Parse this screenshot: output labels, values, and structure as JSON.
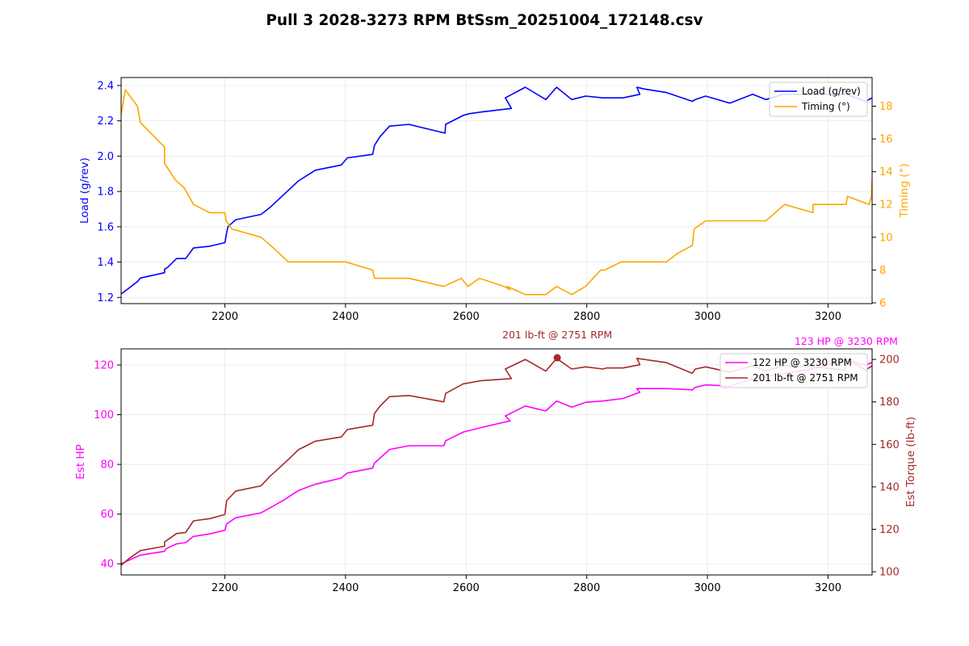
{
  "figure_title": "Pull 3 2028-3273 RPM BtSsm_20251004_172148.csv",
  "colors": {
    "load": "#0000ff",
    "timing": "#ffa500",
    "hp": "#ff00ff",
    "torque": "#a52a2a",
    "grid": "#e6e6e6"
  },
  "chart_data": [
    {
      "type": "line",
      "title": "",
      "xlabel": "",
      "xlim": [
        2028,
        3273
      ],
      "xticks": [
        2200,
        2400,
        2600,
        2800,
        3000,
        3200
      ],
      "grid": true,
      "legend": "top-right",
      "left_axis": {
        "label": "Load (g/rev)",
        "ylim": [
          1.165,
          2.445
        ],
        "ticks": [
          "1.2",
          "1.4",
          "1.6",
          "1.8",
          "2.0",
          "2.2",
          "2.4"
        ],
        "tick_values": [
          1.2,
          1.4,
          1.6,
          1.8,
          2.0,
          2.2,
          2.4
        ]
      },
      "right_axis": {
        "label": "Timing (°)",
        "ylim": [
          5.95,
          19.75
        ],
        "ticks": [
          "6",
          "8",
          "10",
          "12",
          "14",
          "16",
          "18"
        ],
        "tick_values": [
          6,
          8,
          10,
          12,
          14,
          16,
          18
        ]
      },
      "series": [
        {
          "name": "Load (g/rev)",
          "axis": "left",
          "x": [
            2028,
            2040,
            2055,
            2060,
            2100,
            2100,
            2105,
            2120,
            2135,
            2148,
            2175,
            2200,
            2202,
            2205,
            2218,
            2260,
            2275,
            2300,
            2322,
            2350,
            2393,
            2403,
            2445,
            2448,
            2457,
            2473,
            2505,
            2565,
            2566,
            2595,
            2605,
            2625,
            2675,
            2665,
            2698,
            2732,
            2750,
            2775,
            2798,
            2827,
            2860,
            2888,
            2883,
            2895,
            2932,
            2975,
            2980,
            2997,
            3037,
            3075,
            3097,
            3125,
            3175,
            3230,
            3262,
            3273
          ],
          "y": [
            1.22,
            1.25,
            1.29,
            1.31,
            1.34,
            1.36,
            1.37,
            1.42,
            1.42,
            1.48,
            1.49,
            1.51,
            1.55,
            1.6,
            1.64,
            1.67,
            1.71,
            1.79,
            1.86,
            1.92,
            1.95,
            1.99,
            2.01,
            2.06,
            2.11,
            2.17,
            2.18,
            2.13,
            2.18,
            2.23,
            2.24,
            2.25,
            2.27,
            2.33,
            2.39,
            2.32,
            2.39,
            2.32,
            2.34,
            2.33,
            2.33,
            2.35,
            2.39,
            2.38,
            2.36,
            2.31,
            2.32,
            2.34,
            2.3,
            2.35,
            2.32,
            2.35,
            2.35,
            2.35,
            2.31,
            2.33
          ]
        },
        {
          "name": "Timing (°)",
          "axis": "right",
          "x": [
            2028,
            2035,
            2055,
            2060,
            2100,
            2100,
            2118,
            2133,
            2148,
            2175,
            2200,
            2202,
            2212,
            2260,
            2285,
            2305,
            2400,
            2445,
            2448,
            2505,
            2563,
            2592,
            2603,
            2622,
            2663,
            2673,
            2668,
            2698,
            2732,
            2750,
            2775,
            2798,
            2823,
            2830,
            2857,
            2885,
            2895,
            2932,
            2950,
            2975,
            2978,
            2997,
            3097,
            3128,
            3175,
            3175,
            3230,
            3232,
            3268,
            3272,
            3273
          ],
          "y": [
            17.5,
            19.0,
            18.0,
            17.0,
            15.5,
            14.5,
            13.5,
            13.0,
            12.0,
            11.5,
            11.5,
            11.0,
            10.5,
            10.0,
            9.2,
            8.5,
            8.5,
            8.0,
            7.5,
            7.5,
            7.0,
            7.5,
            7.0,
            7.5,
            7.0,
            6.8,
            7.0,
            6.5,
            6.5,
            7.0,
            6.5,
            7.0,
            8.0,
            8.0,
            8.5,
            8.5,
            8.5,
            8.5,
            9.0,
            9.5,
            10.5,
            11.0,
            11.0,
            12.0,
            11.5,
            12.0,
            12.0,
            12.5,
            12.0,
            12.5,
            13.5
          ]
        }
      ]
    },
    {
      "type": "line",
      "title": "",
      "xlabel": "",
      "xlim": [
        2028,
        3273
      ],
      "xticks": [
        2200,
        2400,
        2600,
        2800,
        3000,
        3200
      ],
      "grid": true,
      "legend": "top-right",
      "left_axis": {
        "label": "Est HP",
        "ylim": [
          35.5,
          126.5
        ],
        "ticks": [
          "40",
          "60",
          "80",
          "100",
          "120"
        ],
        "tick_values": [
          40,
          60,
          80,
          100,
          120
        ]
      },
      "right_axis": {
        "label": "Est Torque (lb-ft)",
        "ylim": [
          98.5,
          205.0
        ],
        "ticks": [
          "100",
          "120",
          "140",
          "160",
          "180",
          "200"
        ],
        "tick_values": [
          100,
          120,
          140,
          160,
          180,
          200
        ]
      },
      "series": [
        {
          "name": "122 HP @ 3230 RPM",
          "axis": "left",
          "x": [
            2028,
            2060,
            2100,
            2102,
            2120,
            2135,
            2148,
            2175,
            2200,
            2203,
            2218,
            2260,
            2275,
            2300,
            2322,
            2350,
            2393,
            2403,
            2445,
            2448,
            2457,
            2473,
            2505,
            2563,
            2566,
            2595,
            2628,
            2673,
            2665,
            2698,
            2732,
            2750,
            2775,
            2798,
            2827,
            2860,
            2888,
            2883,
            2932,
            2975,
            2980,
            2997,
            3037,
            3075,
            3097,
            3125,
            3175,
            3230,
            3262,
            3273
          ],
          "y": [
            40.0,
            43.5,
            45.0,
            46.0,
            48.0,
            48.5,
            51.0,
            52.0,
            53.5,
            56.0,
            58.5,
            60.5,
            62.5,
            66.0,
            69.5,
            72.0,
            74.5,
            76.5,
            78.5,
            80.5,
            82.5,
            86.0,
            87.5,
            87.5,
            89.5,
            93.0,
            95.0,
            97.5,
            99.5,
            103.5,
            101.5,
            105.5,
            103.0,
            105.0,
            105.5,
            106.5,
            109.0,
            110.5,
            110.5,
            110.0,
            111.0,
            112.0,
            111.5,
            114.5,
            115.5,
            116.5,
            118.5,
            122.0,
            120.0,
            121.0
          ]
        },
        {
          "name": "201 lb-ft @ 2751 RPM",
          "axis": "right",
          "x": [
            2028,
            2040,
            2060,
            2100,
            2100,
            2120,
            2135,
            2148,
            2175,
            2200,
            2203,
            2218,
            2260,
            2275,
            2300,
            2322,
            2350,
            2393,
            2403,
            2445,
            2448,
            2457,
            2473,
            2505,
            2563,
            2566,
            2595,
            2605,
            2625,
            2675,
            2665,
            2698,
            2732,
            2750,
            2775,
            2798,
            2827,
            2832,
            2860,
            2888,
            2883,
            2895,
            2932,
            2975,
            2980,
            2997,
            3037,
            3075,
            3097,
            3125,
            3175,
            3228,
            3233,
            3262,
            3273
          ],
          "y": [
            103.0,
            106.0,
            110.0,
            112.0,
            114.0,
            118.0,
            118.5,
            124.0,
            125.0,
            127.0,
            133.5,
            138.0,
            140.5,
            145.0,
            151.5,
            157.5,
            161.5,
            163.5,
            167.0,
            169.0,
            174.5,
            178.0,
            182.5,
            183.0,
            180.0,
            184.0,
            188.5,
            189.0,
            190.0,
            191.0,
            195.5,
            200.0,
            194.5,
            200.5,
            195.5,
            196.5,
            195.5,
            196.0,
            196.0,
            197.5,
            200.5,
            200.0,
            198.5,
            193.5,
            195.5,
            196.5,
            194.0,
            197.0,
            194.5,
            197.0,
            196.5,
            195.0,
            200.0,
            195.0,
            197.0
          ]
        }
      ],
      "peaks": [
        {
          "label": "201 lb-ft @ 2751 RPM",
          "x": 2751,
          "y": 200.8,
          "axis": "right"
        },
        {
          "label": "123 HP @ 3230 RPM",
          "x": 3230,
          "y": 122.5,
          "axis": "left"
        }
      ]
    }
  ]
}
